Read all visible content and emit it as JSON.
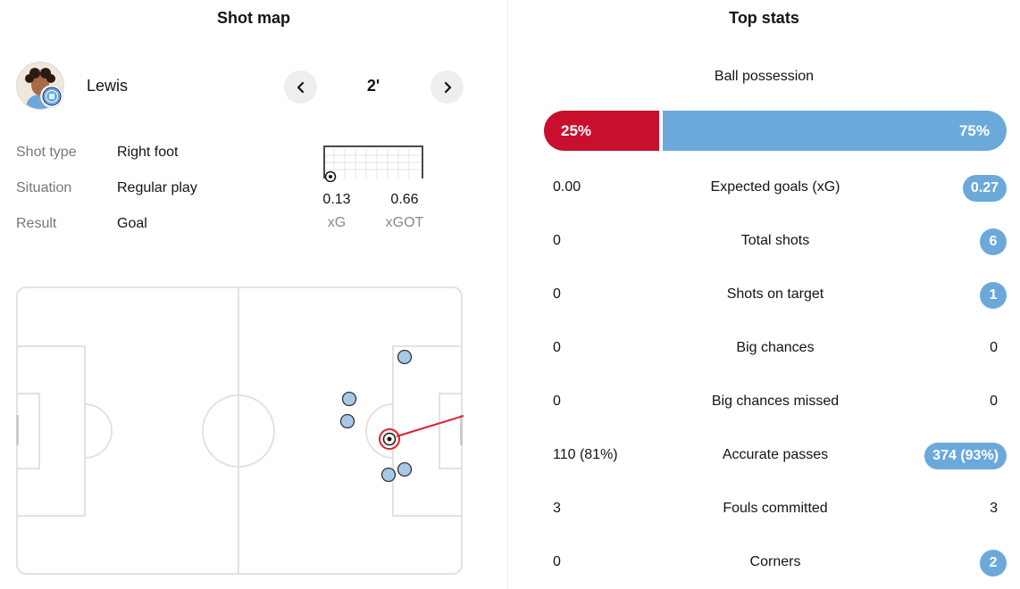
{
  "shot_map": {
    "title": "Shot map",
    "player": {
      "name": "Lewis",
      "avatar_icon": "player-avatar",
      "badge_icon": "club-badge-icon"
    },
    "minute": "2'",
    "prev_icon": "chevron-left-icon",
    "next_icon": "chevron-right-icon",
    "details": [
      {
        "label": "Shot type",
        "value": "Right foot"
      },
      {
        "label": "Situation",
        "value": "Regular play"
      },
      {
        "label": "Result",
        "value": "Goal"
      }
    ],
    "xg": {
      "value": "0.13",
      "label": "xG"
    },
    "xgot": {
      "value": "0.66",
      "label": "xGOT"
    },
    "colors": {
      "shot": "#a8c8e8",
      "selected": "#c8102e",
      "pitch_line": "#e2e2e2"
    }
  },
  "top_stats": {
    "title": "Top stats",
    "possession": {
      "label": "Ball possession",
      "home": "25%",
      "away": "75%",
      "home_pct": 25,
      "away_pct": 75
    },
    "rows": [
      {
        "home": "0.00",
        "label": "Expected goals (xG)",
        "away": "0.27",
        "away_highlight": true,
        "home_highlight": false
      },
      {
        "home": "0",
        "label": "Total shots",
        "away": "6",
        "away_highlight": true,
        "home_highlight": false
      },
      {
        "home": "0",
        "label": "Shots on target",
        "away": "1",
        "away_highlight": true,
        "home_highlight": false
      },
      {
        "home": "0",
        "label": "Big chances",
        "away": "0",
        "away_highlight": false,
        "home_highlight": false
      },
      {
        "home": "0",
        "label": "Big chances missed",
        "away": "0",
        "away_highlight": false,
        "home_highlight": false
      },
      {
        "home": "110 (81%)",
        "label": "Accurate passes",
        "away": "374 (93%)",
        "away_highlight": true,
        "home_highlight": false
      },
      {
        "home": "3",
        "label": "Fouls committed",
        "away": "3",
        "away_highlight": false,
        "home_highlight": false
      },
      {
        "home": "0",
        "label": "Corners",
        "away": "2",
        "away_highlight": true,
        "home_highlight": false
      }
    ],
    "colors": {
      "home": "#c8102e",
      "away": "#6ca9db"
    }
  }
}
